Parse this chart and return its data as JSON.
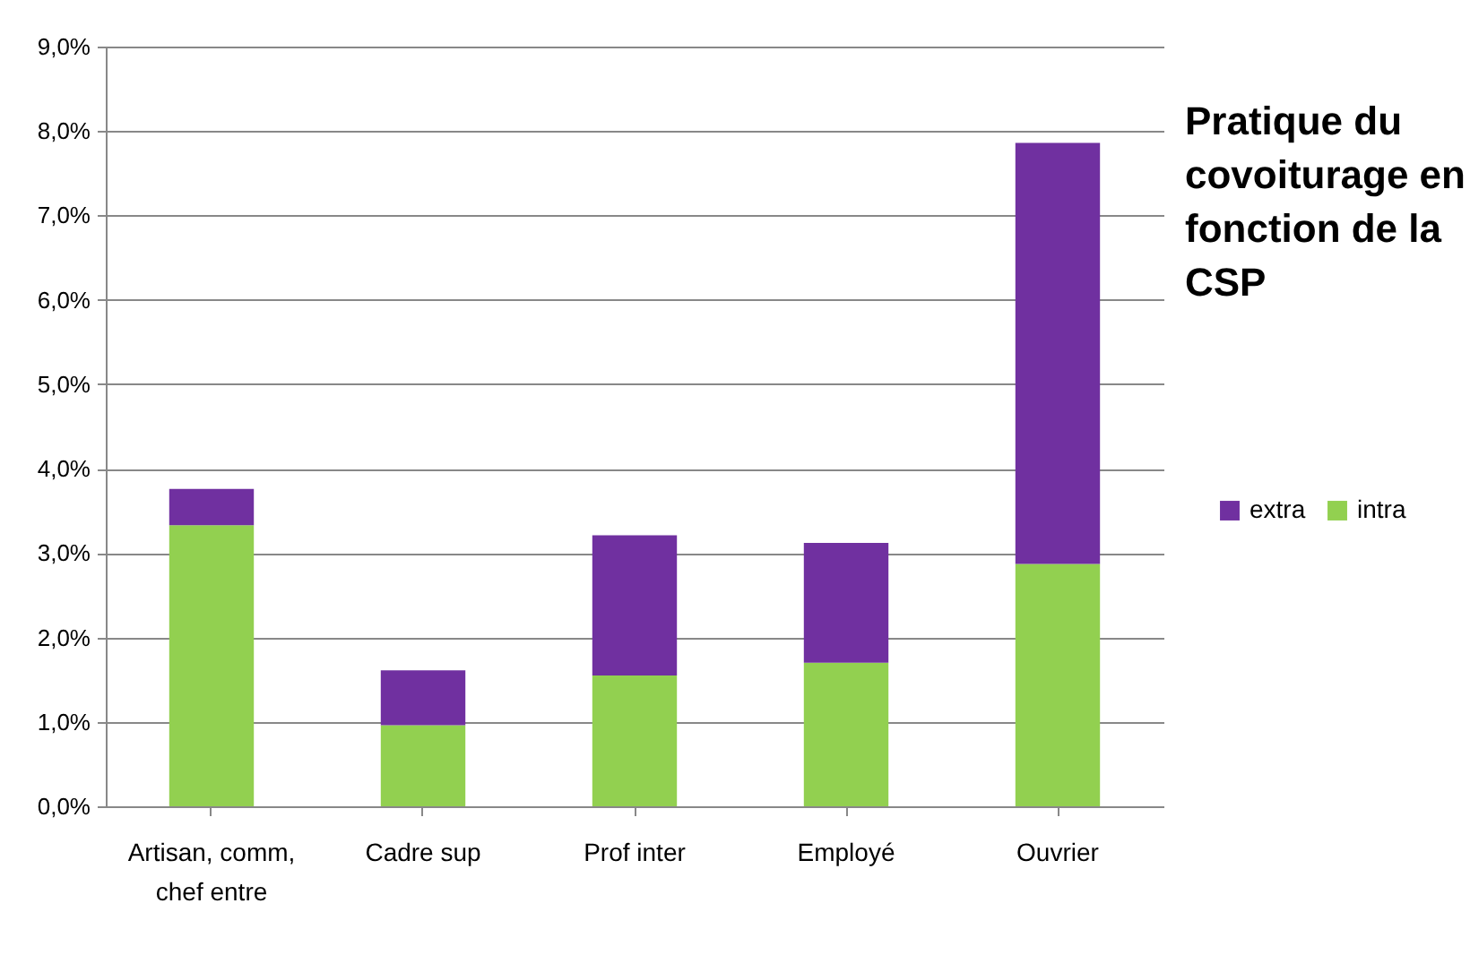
{
  "chart_data": {
    "type": "bar",
    "title": "Pratique du covoiturage en fonction de la CSP",
    "stacked": true,
    "categories": [
      "Artisan, comm, chef entre",
      "Cadre sup",
      "Prof inter",
      "Employé",
      "Ouvrier"
    ],
    "series": [
      {
        "name": "intra",
        "color": "#92d050",
        "values": [
          3.33,
          0.96,
          1.55,
          1.7,
          2.87
        ]
      },
      {
        "name": "extra",
        "color": "#7030a0",
        "values": [
          0.43,
          0.65,
          1.66,
          1.42,
          4.99
        ]
      }
    ],
    "ylim": [
      0,
      9
    ],
    "yticks": [
      {
        "value": 0,
        "label": "0,0%"
      },
      {
        "value": 1,
        "label": "1,0%"
      },
      {
        "value": 2,
        "label": "2,0%"
      },
      {
        "value": 3,
        "label": "3,0%"
      },
      {
        "value": 4,
        "label": "4,0%"
      },
      {
        "value": 5,
        "label": "5,0%"
      },
      {
        "value": 6,
        "label": "6,0%"
      },
      {
        "value": 7,
        "label": "7,0%"
      },
      {
        "value": 8,
        "label": "8,0%"
      },
      {
        "value": 9,
        "label": "9,0%"
      }
    ],
    "grid": "y",
    "legend": "right"
  }
}
